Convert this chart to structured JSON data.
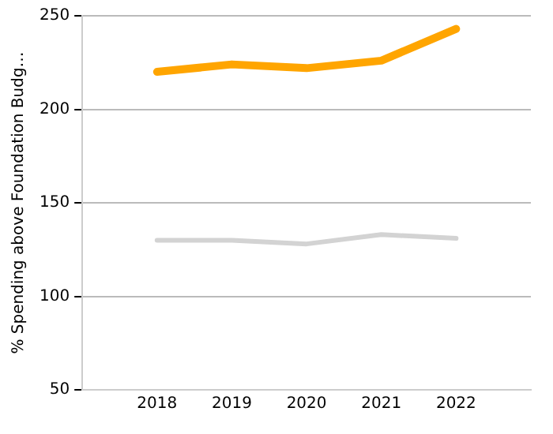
{
  "chart_data": {
    "type": "line",
    "ylabel": "% Spending above Foundation Budg…",
    "x": [
      2018,
      2019,
      2020,
      2021,
      2022
    ],
    "series": [
      {
        "color": "#ffa500",
        "values": [
          220,
          224,
          222,
          226,
          243
        ]
      },
      {
        "color": "#d3d3d3",
        "values": [
          130,
          130,
          128,
          133,
          131
        ]
      }
    ],
    "xlim": [
      2017,
      2023
    ],
    "xticks": [
      2018,
      2019,
      2020,
      2021,
      2022
    ],
    "ylim": [
      50,
      250
    ],
    "yticks": [
      50,
      100,
      150,
      200,
      250
    ],
    "grid": "y",
    "legend": false,
    "marker": "none",
    "line_style": "solid"
  }
}
